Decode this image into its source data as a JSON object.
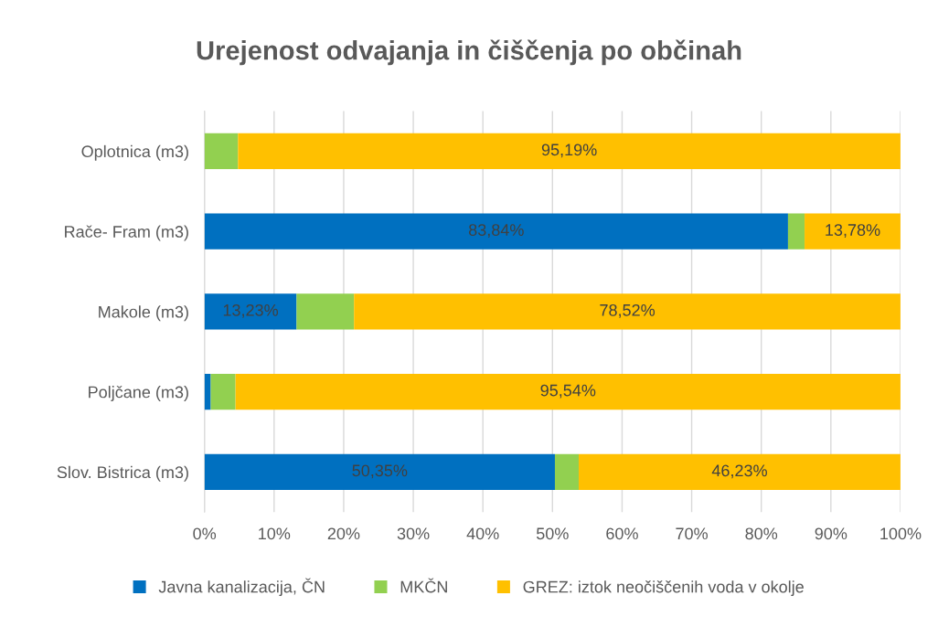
{
  "chart_data": {
    "type": "bar",
    "orientation": "horizontal",
    "stacked": true,
    "title": "Urejenost odvajanja in čiščenja po občinah",
    "categories": [
      "Oplotnica (m3)",
      "Rače- Fram (m3)",
      "Makole (m3)",
      "Poljčane (m3)",
      "Slov. Bistrica (m3)"
    ],
    "series": [
      {
        "name": "Javna kanalizacija, ČN",
        "color": "#0070c0",
        "values": [
          0,
          83.84,
          13.23,
          0.9,
          50.35
        ],
        "value_labels": [
          null,
          "83,84%",
          "13,23%",
          null,
          "50,35%"
        ]
      },
      {
        "name": "MKČN",
        "color": "#92d050",
        "values": [
          4.81,
          2.38,
          8.25,
          3.56,
          3.42
        ]
      },
      {
        "name": "GREZ: iztok neočiščenih voda v okolje",
        "color": "#ffc000",
        "values": [
          95.19,
          13.78,
          78.52,
          95.54,
          46.23
        ],
        "value_labels": [
          "95,19%",
          "13,78%",
          "78,52%",
          "95,54%",
          "46,23%"
        ]
      }
    ],
    "xlim": [
      0,
      100
    ],
    "xticks": [
      {
        "value": 0,
        "label": "0%"
      },
      {
        "value": 10,
        "label": "10%"
      },
      {
        "value": 20,
        "label": "20%"
      },
      {
        "value": 30,
        "label": "30%"
      },
      {
        "value": 40,
        "label": "40%"
      },
      {
        "value": 50,
        "label": "50%"
      },
      {
        "value": 60,
        "label": "60%"
      },
      {
        "value": 70,
        "label": "70%"
      },
      {
        "value": 80,
        "label": "80%"
      },
      {
        "value": 90,
        "label": "90%"
      },
      {
        "value": 100,
        "label": "100%"
      }
    ],
    "grid": "x",
    "legend": "bottom"
  }
}
